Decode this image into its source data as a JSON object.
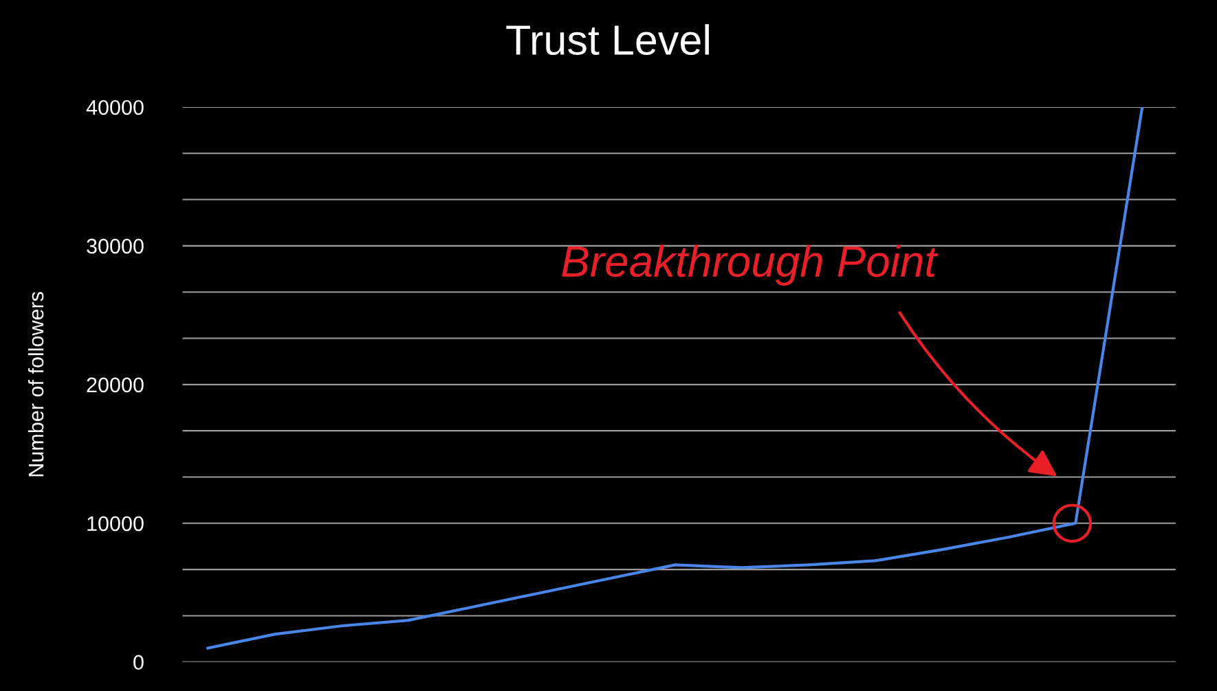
{
  "chart_data": {
    "type": "line",
    "title": "Trust Level",
    "ylabel": "Number of followers",
    "categories": [
      null,
      null,
      null,
      null,
      null,
      null,
      null,
      null,
      null,
      null,
      null,
      null,
      null,
      null,
      null
    ],
    "series": [
      {
        "color": "#4a86e8",
        "values": [
          1000,
          2000,
          2600,
          3000,
          4000,
          5000,
          6000,
          7000,
          6800,
          7000,
          7300,
          8100,
          9000,
          10000,
          40000
        ]
      }
    ],
    "ylim": [
      0,
      40000
    ],
    "yticks": [
      0,
      {
        "value": 3333.33,
        "label": null
      },
      {
        "value": 6666.67,
        "label": null
      },
      {
        "value": 10000,
        "label": "10000"
      },
      {
        "value": 13333.33,
        "label": null
      },
      {
        "value": 16666.67,
        "label": null
      },
      {
        "value": 20000,
        "label": "20000"
      },
      {
        "value": 23333.33,
        "label": null
      },
      {
        "value": 26666.67,
        "label": null
      },
      {
        "value": 30000,
        "label": "30000"
      },
      {
        "value": 33333.33,
        "label": null
      },
      {
        "value": 36666.67,
        "label": null
      },
      {
        "value": 40000,
        "label": "40000"
      }
    ],
    "grid": "y",
    "tick_labels": "y",
    "marker": "none",
    "line_style": "solid",
    "annotations": [
      "Breakthrough Point"
    ]
  }
}
